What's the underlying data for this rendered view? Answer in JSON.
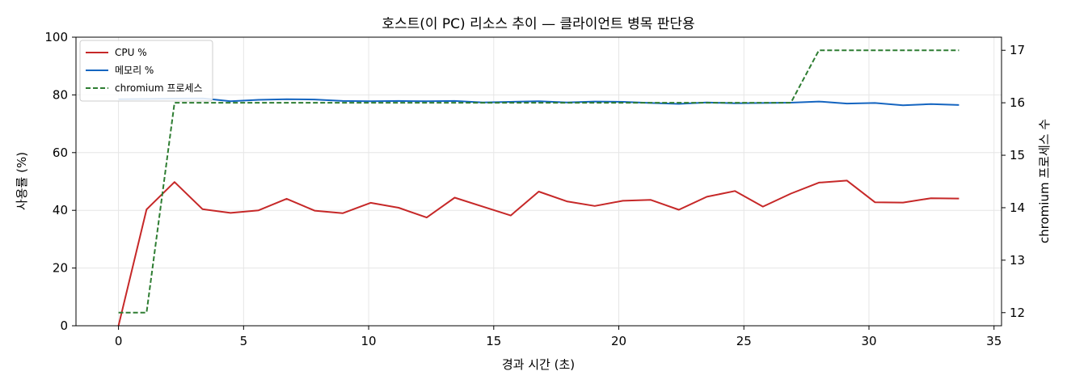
{
  "chart_data": {
    "type": "line",
    "title": "호스트(이 PC) 리소스 추이 — 클라이언트 병목 판단용",
    "xlabel": "경과 시간 (초)",
    "ylabel": "사용률 (%)",
    "y2label": "chromium 프로세스 수",
    "xlim": [
      -1.7,
      35.3
    ],
    "ylim": [
      0,
      100
    ],
    "y2lim": [
      11.75,
      17.25
    ],
    "xticks": [
      0,
      5,
      10,
      15,
      20,
      25,
      30,
      35
    ],
    "yticks": [
      0,
      20,
      40,
      60,
      80,
      100
    ],
    "y2ticks": [
      12,
      13,
      14,
      15,
      16,
      17
    ],
    "grid": true,
    "legend_position": "top-left",
    "x": [
      0,
      1.12,
      2.24,
      3.36,
      4.48,
      5.6,
      6.72,
      7.84,
      8.96,
      10.08,
      11.2,
      12.32,
      13.44,
      14.56,
      15.68,
      16.8,
      17.92,
      19.04,
      20.16,
      21.28,
      22.4,
      23.52,
      24.64,
      25.76,
      26.88,
      28.0,
      29.12,
      30.24,
      31.36,
      32.48,
      33.6
    ],
    "series": [
      {
        "name": "CPU %",
        "axis": "left",
        "color": "#c62828",
        "style": "solid",
        "values": [
          0,
          40.3,
          49.8,
          40.4,
          39.1,
          40.0,
          44.0,
          39.9,
          39.0,
          42.6,
          40.9,
          37.5,
          44.4,
          41.3,
          38.2,
          46.5,
          43.1,
          41.5,
          43.3,
          43.6,
          40.2,
          44.7,
          46.7,
          41.3,
          45.8,
          49.6,
          50.3,
          42.8,
          42.7,
          44.2,
          44.1
        ]
      },
      {
        "name": "메모리 %",
        "axis": "left",
        "color": "#1565c0",
        "style": "solid",
        "values": [
          78.5,
          78.6,
          78.7,
          78.8,
          77.8,
          78.3,
          78.5,
          78.4,
          77.9,
          77.8,
          77.9,
          77.8,
          77.9,
          77.4,
          77.6,
          77.8,
          77.4,
          77.7,
          77.6,
          77.2,
          76.9,
          77.4,
          77.1,
          77.2,
          77.3,
          77.7,
          77.0,
          77.2,
          76.4,
          76.8,
          76.5
        ]
      },
      {
        "name": "chromium 프로세스",
        "axis": "right",
        "color": "#2e7d32",
        "style": "dashed",
        "values": [
          12,
          12,
          16,
          16,
          16,
          16,
          16,
          16,
          16,
          16,
          16,
          16,
          16,
          16,
          16,
          16,
          16,
          16,
          16,
          16,
          16,
          16,
          16,
          16,
          16,
          17,
          17,
          17,
          17,
          17,
          17
        ]
      }
    ]
  }
}
